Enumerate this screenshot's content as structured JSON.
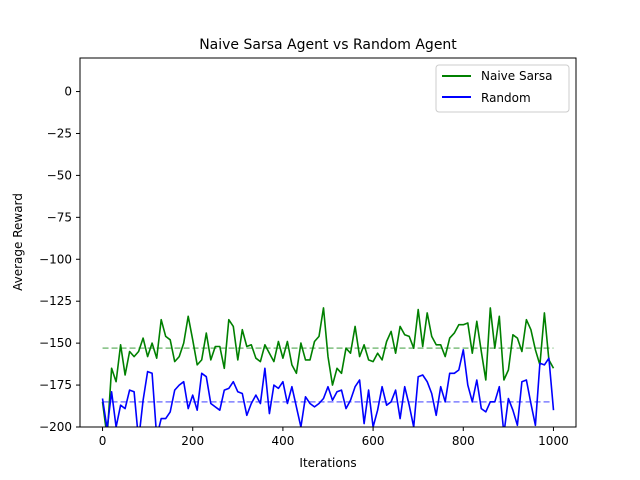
{
  "chart_data": {
    "type": "line",
    "title": "Naive Sarsa Agent vs Random Agent",
    "xlabel": "Iterations",
    "ylabel": "Average Reward",
    "xlim": [
      -50,
      1050
    ],
    "ylim": [
      -200,
      20
    ],
    "xticks": [
      0,
      200,
      400,
      600,
      800,
      1000
    ],
    "yticks": [
      0,
      -25,
      -50,
      -75,
      -100,
      -125,
      -150,
      -175,
      -200
    ],
    "xtick_labels": [
      "0",
      "200",
      "400",
      "600",
      "800",
      "1000"
    ],
    "ytick_labels": [
      "0",
      "−25",
      "−50",
      "−75",
      "−100",
      "−125",
      "−150",
      "−175",
      "−200"
    ],
    "legend_position": "upper-right",
    "grid": false,
    "x": [
      0,
      10,
      20,
      30,
      40,
      50,
      60,
      70,
      80,
      90,
      100,
      110,
      120,
      130,
      140,
      150,
      160,
      170,
      180,
      190,
      200,
      210,
      220,
      230,
      240,
      250,
      260,
      270,
      280,
      290,
      300,
      310,
      320,
      330,
      340,
      350,
      360,
      370,
      380,
      390,
      400,
      410,
      420,
      430,
      440,
      450,
      460,
      470,
      480,
      490,
      500,
      510,
      520,
      530,
      540,
      550,
      560,
      570,
      580,
      590,
      600,
      610,
      620,
      630,
      640,
      650,
      660,
      670,
      680,
      690,
      700,
      710,
      720,
      730,
      740,
      750,
      760,
      770,
      780,
      790,
      800,
      810,
      820,
      830,
      840,
      850,
      860,
      870,
      880,
      890,
      900,
      910,
      920,
      930,
      940,
      950,
      960,
      970,
      980,
      990,
      1000
    ],
    "series": [
      {
        "name": "Naive Sarsa",
        "color": "#008000",
        "values": [
          -185,
          -206,
          -165,
          -173,
          -151,
          -169,
          -155,
          -158,
          -155,
          -147,
          -158,
          -150,
          -159,
          -136,
          -146,
          -148,
          -161,
          -158,
          -150,
          -134,
          -148,
          -163,
          -160,
          -144,
          -160,
          -152,
          -152,
          -165,
          -136,
          -140,
          -160,
          -142,
          -152,
          -151,
          -159,
          -161,
          -151,
          -156,
          -161,
          -149,
          -159,
          -149,
          -163,
          -168,
          -150,
          -160,
          -160,
          -149,
          -146,
          -129,
          -158,
          -175,
          -165,
          -168,
          -153,
          -156,
          -140,
          -158,
          -151,
          -160,
          -161,
          -156,
          -160,
          -149,
          -143,
          -156,
          -140,
          -145,
          -146,
          -153,
          -130,
          -152,
          -132,
          -146,
          -151,
          -151,
          -158,
          -147,
          -144,
          -139,
          -139,
          -138,
          -156,
          -137,
          -155,
          -172,
          -129,
          -153,
          -134,
          -172,
          -166,
          -145,
          -147,
          -155,
          -136,
          -142,
          -154,
          -163,
          -132,
          -160,
          -165
        ]
      },
      {
        "name": "Random",
        "color": "#0000ff",
        "values": [
          -183,
          -201,
          -179,
          -200,
          -187,
          -189,
          -178,
          -179,
          -208,
          -184,
          -167,
          -168,
          -206,
          -195,
          -195,
          -191,
          -178,
          -175,
          -173,
          -189,
          -181,
          -190,
          -168,
          -170,
          -186,
          -188,
          -190,
          -178,
          -177,
          -173,
          -179,
          -180,
          -193,
          -186,
          -181,
          -186,
          -165,
          -192,
          -175,
          -177,
          -173,
          -186,
          -176,
          -188,
          -200,
          -182,
          -186,
          -188,
          -186,
          -183,
          -176,
          -184,
          -179,
          -178,
          -189,
          -184,
          -176,
          -172,
          -198,
          -178,
          -200,
          -190,
          -176,
          -187,
          -185,
          -178,
          -195,
          -176,
          -187,
          -200,
          -170,
          -169,
          -173,
          -180,
          -193,
          -176,
          -185,
          -168,
          -168,
          -166,
          -154,
          -175,
          -185,
          -172,
          -189,
          -191,
          -185,
          -185,
          -176,
          -204,
          -183,
          -190,
          -199,
          -173,
          -172,
          -186,
          -199,
          -162,
          -163,
          -159,
          -190
        ]
      }
    ],
    "reference_lines": [
      {
        "y": -153,
        "color": "#7fbf7f",
        "style": "dashed"
      },
      {
        "y": -185,
        "color": "#7f7fff",
        "style": "dashed"
      }
    ]
  }
}
